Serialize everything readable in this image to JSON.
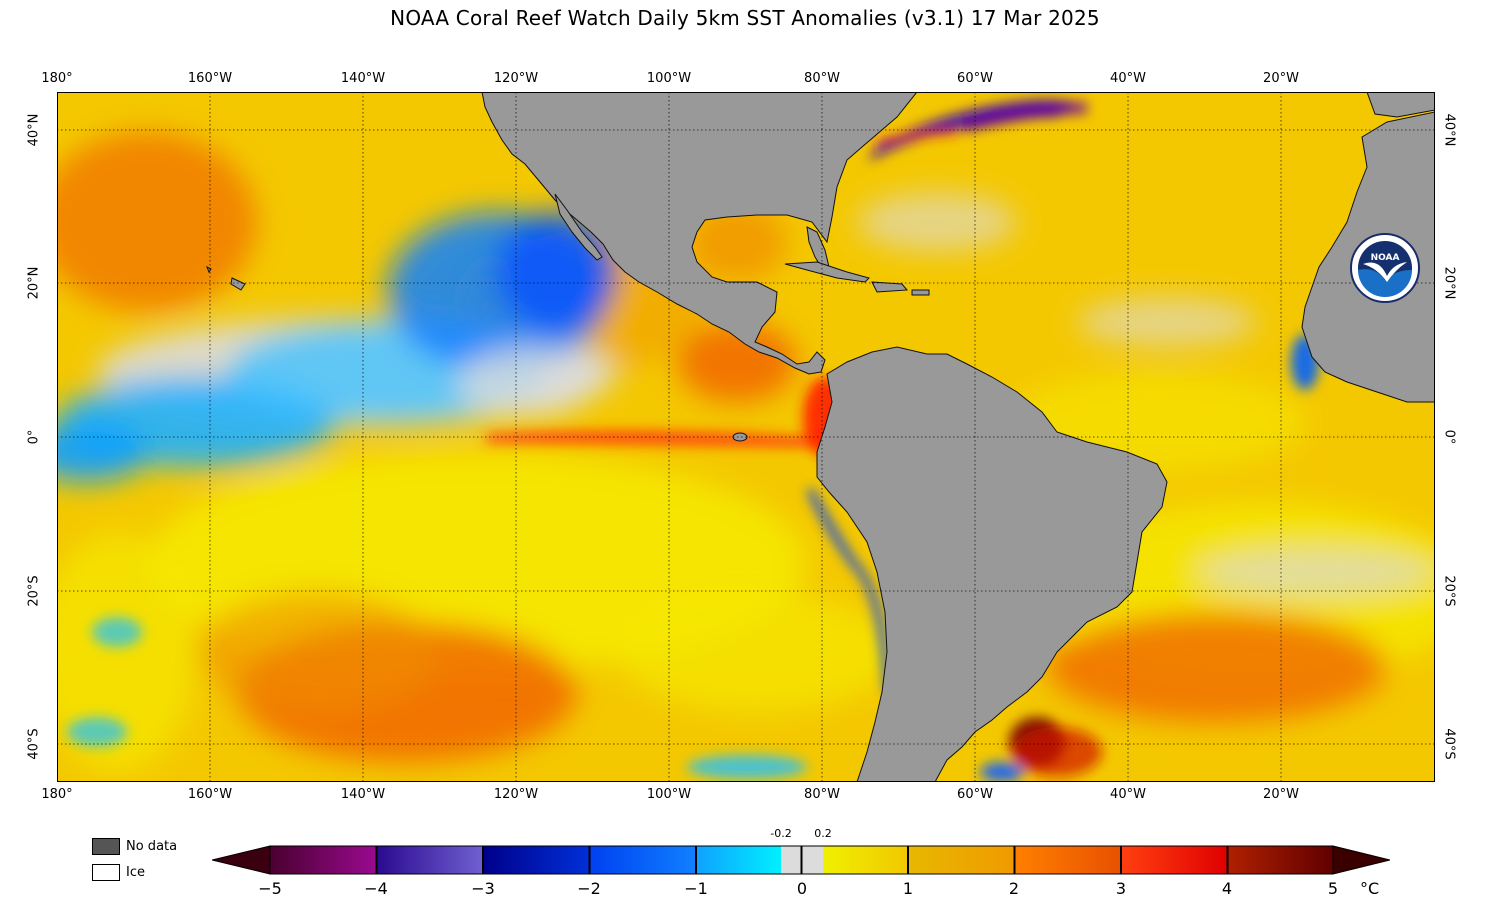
{
  "title": "NOAA Coral Reef Watch Daily 5km SST Anomalies  (v3.1)   17 Mar 2025",
  "map": {
    "lon_range": [
      -180,
      0
    ],
    "lat_range": [
      -45,
      45
    ],
    "gridlines": true,
    "top_lon_labels": [
      "180°",
      "160°W",
      "140°W",
      "120°W",
      "100°W",
      "80°W",
      "60°W",
      "40°W",
      "20°W"
    ],
    "bottom_lon_labels": [
      "180°",
      "160°W",
      "140°W",
      "120°W",
      "100°W",
      "80°W",
      "60°W",
      "40°W",
      "20°W"
    ],
    "left_lat_labels": [
      "40°N",
      "20°N",
      "0°",
      "20°S",
      "40°S"
    ],
    "right_lat_labels": [
      "40°N",
      "20°N",
      "0°",
      "20°S",
      "40°S"
    ],
    "land_color": "#999999",
    "no_data_color": "#555555"
  },
  "logo": {
    "icon": "noaa-logo-icon",
    "text": "NOAA"
  },
  "legend": {
    "no_data_label": "No data",
    "ice_label": "Ice"
  },
  "colorbar": {
    "tick_labels": [
      "−5",
      "−4",
      "−3",
      "−2",
      "−1",
      "0",
      "1",
      "2",
      "3",
      "4",
      "5"
    ],
    "small_labels": [
      "-0.2",
      "0.2"
    ],
    "unit": "°C",
    "range": [
      -5,
      5
    ],
    "neutral_band": [
      -0.2,
      0.2
    ],
    "colors": {
      "minus5": "#3a0010",
      "minus4": "#8c0a80",
      "minus3": "#6a5ac8",
      "minus2": "#0010a8",
      "minus1": "#1070ff",
      "minus02": "#00e8ff",
      "neutral": "#dcdcdc",
      "plus02": "#f0f000",
      "plus1": "#f0c000",
      "plus2": "#f09000",
      "plus3": "#ff3010",
      "plus4": "#d00000",
      "plus5": "#3a0000"
    }
  }
}
